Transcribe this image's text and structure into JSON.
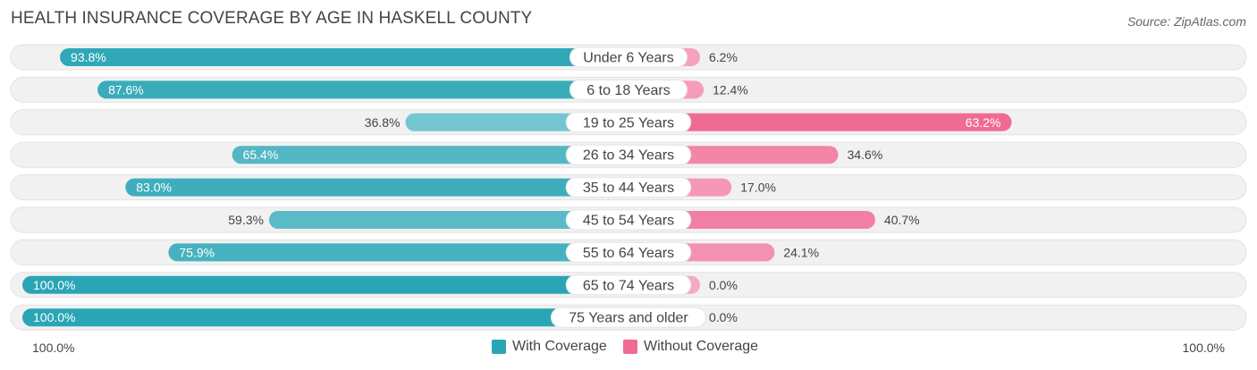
{
  "header": {
    "title": "HEALTH INSURANCE COVERAGE BY AGE IN HASKELL COUNTY",
    "source": "Source: ZipAtlas.com"
  },
  "axis": {
    "left_label": "100.0%",
    "right_label": "100.0%"
  },
  "legend": {
    "with_label": "With Coverage",
    "without_label": "Without Coverage"
  },
  "colors": {
    "with_dark": "#2aa5b5",
    "with_light": "#7ccad4",
    "without_dark": "#f06a94",
    "without_light": "#f7a9c2",
    "track": "#f1f1f1"
  },
  "chart_data": {
    "type": "bar",
    "title": "HEALTH INSURANCE COVERAGE BY AGE IN HASKELL COUNTY",
    "categories": [
      "Under 6 Years",
      "6 to 18 Years",
      "19 to 25 Years",
      "26 to 34 Years",
      "35 to 44 Years",
      "45 to 54 Years",
      "55 to 64 Years",
      "65 to 74 Years",
      "75 Years and older"
    ],
    "series": [
      {
        "name": "With Coverage",
        "values": [
          93.8,
          87.6,
          36.8,
          65.4,
          83.0,
          59.3,
          75.9,
          100.0,
          100.0
        ],
        "labels": [
          "93.8%",
          "87.6%",
          "36.8%",
          "65.4%",
          "83.0%",
          "59.3%",
          "75.9%",
          "100.0%",
          "100.0%"
        ]
      },
      {
        "name": "Without Coverage",
        "values": [
          6.2,
          12.4,
          63.2,
          34.6,
          17.0,
          40.7,
          24.1,
          0.0,
          0.0
        ],
        "labels": [
          "6.2%",
          "12.4%",
          "63.2%",
          "34.6%",
          "17.0%",
          "40.7%",
          "24.1%",
          "0.0%",
          "0.0%"
        ]
      }
    ],
    "xlim": [
      0,
      100
    ],
    "legend_position": "bottom-center"
  }
}
